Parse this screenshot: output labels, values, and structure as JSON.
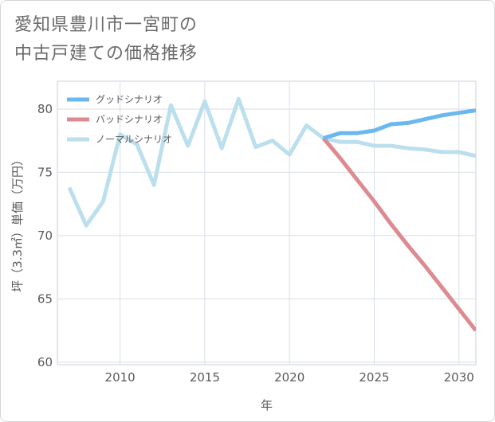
{
  "title_line1": "愛知県豊川市一宮町の",
  "title_line2": "中古戸建ての価格推移",
  "colors": {
    "good": "#6bb8ee",
    "bad": "#dd8a90",
    "normal": "#bcdfee",
    "grid": "#d8dee8",
    "frame": "#c8d2de"
  },
  "chart_data": {
    "type": "line",
    "xlabel": "年",
    "ylabel": "坪（3.3㎡）単価（万円）",
    "xlim": [
      2006.3,
      2031
    ],
    "ylim": [
      59.8,
      82.2
    ],
    "xticks": [
      2010,
      2015,
      2020,
      2025,
      2030
    ],
    "yticks": [
      60,
      65,
      70,
      75,
      80
    ],
    "grid": true,
    "legend_position": "top-left",
    "series": [
      {
        "name": "グッドシナリオ",
        "color_key": "good",
        "x": [
          2022,
          2023,
          2024,
          2025,
          2026,
          2027,
          2028,
          2029,
          2030,
          2031
        ],
        "y": [
          77.7,
          78.1,
          78.1,
          78.3,
          78.8,
          78.9,
          79.2,
          79.5,
          79.7,
          79.9
        ]
      },
      {
        "name": "バッドシナリオ",
        "color_key": "bad",
        "x": [
          2022,
          2023,
          2024,
          2025,
          2026,
          2027,
          2028,
          2029,
          2030,
          2031
        ],
        "y": [
          77.7,
          76.1,
          74.4,
          72.7,
          70.9,
          69.2,
          67.6,
          65.9,
          64.2,
          62.5
        ]
      },
      {
        "name": "ノーマルシナリオ",
        "color_key": "normal",
        "x": [
          2007,
          2008,
          2009,
          2010,
          2011,
          2012,
          2013,
          2014,
          2015,
          2016,
          2017,
          2018,
          2019,
          2020,
          2021,
          2022,
          2023,
          2024,
          2025,
          2026,
          2027,
          2028,
          2029,
          2030,
          2031
        ],
        "y": [
          73.8,
          70.8,
          72.7,
          78.0,
          77.2,
          74.0,
          80.3,
          77.1,
          80.6,
          76.9,
          80.8,
          77.0,
          77.5,
          76.4,
          78.7,
          77.7,
          77.4,
          77.4,
          77.1,
          77.1,
          76.9,
          76.8,
          76.6,
          76.6,
          76.3
        ]
      }
    ]
  }
}
